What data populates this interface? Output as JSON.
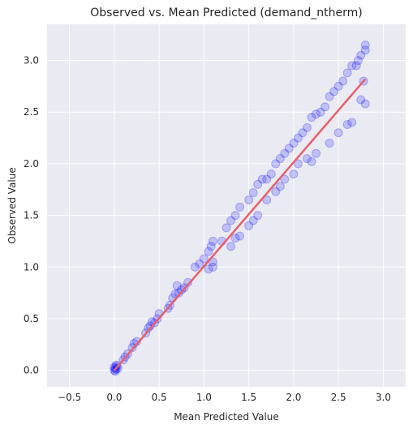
{
  "chart_data": {
    "type": "scatter",
    "title": "Observed vs. Mean Predicted (demand_ntherm)",
    "xlabel": "Mean Predicted Value",
    "ylabel": "Observed Value",
    "xlim": [
      -0.75,
      3.25
    ],
    "ylim": [
      -0.16,
      3.35
    ],
    "xticks": [
      -0.5,
      0.0,
      0.5,
      1.0,
      1.5,
      2.0,
      2.5,
      3.0
    ],
    "xtick_labels": [
      "−0.5",
      "0.0",
      "0.5",
      "1.0",
      "1.5",
      "2.0",
      "2.5",
      "3.0"
    ],
    "yticks": [
      0.0,
      0.5,
      1.0,
      1.5,
      2.0,
      2.5,
      3.0
    ],
    "ytick_labels": [
      "0.0",
      "0.5",
      "1.0",
      "1.5",
      "2.0",
      "2.5",
      "3.0"
    ],
    "grid": true,
    "background_color": "#eaeaf2",
    "point_color": "#0000ff",
    "fit_line_color": "#e8606a",
    "fit_line": {
      "x": [
        0.0,
        2.8
      ],
      "y": [
        0.0,
        2.82
      ]
    },
    "series": [
      {
        "values": [
          [
            0.0,
            0.0
          ],
          [
            0.01,
            0.02
          ],
          [
            0.0,
            0.03
          ],
          [
            0.02,
            0.01
          ],
          [
            0.01,
            -0.01
          ],
          [
            0.03,
            0.04
          ],
          [
            0.02,
            0.05
          ],
          [
            0.04,
            0.02
          ],
          [
            0.1,
            0.1
          ],
          [
            0.12,
            0.13
          ],
          [
            0.15,
            0.16
          ],
          [
            0.2,
            0.22
          ],
          [
            0.22,
            0.26
          ],
          [
            0.25,
            0.28
          ],
          [
            0.35,
            0.36
          ],
          [
            0.38,
            0.41
          ],
          [
            0.4,
            0.43
          ],
          [
            0.42,
            0.47
          ],
          [
            0.45,
            0.46
          ],
          [
            0.48,
            0.5
          ],
          [
            0.5,
            0.55
          ],
          [
            0.6,
            0.6
          ],
          [
            0.62,
            0.63
          ],
          [
            0.65,
            0.7
          ],
          [
            0.68,
            0.74
          ],
          [
            0.7,
            0.82
          ],
          [
            0.72,
            0.75
          ],
          [
            0.75,
            0.78
          ],
          [
            0.78,
            0.8
          ],
          [
            0.82,
            0.85
          ],
          [
            0.9,
            1.0
          ],
          [
            0.95,
            1.03
          ],
          [
            1.0,
            1.08
          ],
          [
            1.05,
            1.15
          ],
          [
            1.08,
            1.2
          ],
          [
            1.1,
            1.25
          ],
          [
            1.1,
            1.05
          ],
          [
            1.05,
            0.98
          ],
          [
            1.1,
            1.0
          ],
          [
            1.2,
            1.25
          ],
          [
            1.25,
            1.38
          ],
          [
            1.3,
            1.45
          ],
          [
            1.35,
            1.5
          ],
          [
            1.4,
            1.58
          ],
          [
            1.3,
            1.2
          ],
          [
            1.35,
            1.28
          ],
          [
            1.4,
            1.3
          ],
          [
            1.5,
            1.65
          ],
          [
            1.55,
            1.72
          ],
          [
            1.6,
            1.8
          ],
          [
            1.65,
            1.85
          ],
          [
            1.5,
            1.4
          ],
          [
            1.55,
            1.45
          ],
          [
            1.6,
            1.5
          ],
          [
            1.7,
            1.85
          ],
          [
            1.75,
            1.9
          ],
          [
            1.8,
            2.0
          ],
          [
            1.85,
            2.05
          ],
          [
            1.7,
            1.65
          ],
          [
            1.8,
            1.73
          ],
          [
            1.85,
            1.78
          ],
          [
            1.9,
            2.1
          ],
          [
            1.95,
            2.15
          ],
          [
            2.0,
            2.2
          ],
          [
            2.05,
            2.25
          ],
          [
            2.0,
            1.9
          ],
          [
            2.05,
            2.0
          ],
          [
            1.9,
            1.85
          ],
          [
            2.1,
            2.3
          ],
          [
            2.15,
            2.35
          ],
          [
            2.2,
            2.45
          ],
          [
            2.25,
            2.48
          ],
          [
            2.2,
            2.02
          ],
          [
            2.25,
            2.1
          ],
          [
            2.15,
            2.05
          ],
          [
            2.3,
            2.5
          ],
          [
            2.35,
            2.55
          ],
          [
            2.4,
            2.65
          ],
          [
            2.45,
            2.7
          ],
          [
            2.4,
            2.2
          ],
          [
            2.5,
            2.3
          ],
          [
            2.5,
            2.75
          ],
          [
            2.55,
            2.8
          ],
          [
            2.6,
            2.88
          ],
          [
            2.65,
            2.95
          ],
          [
            2.6,
            2.38
          ],
          [
            2.65,
            2.4
          ],
          [
            2.7,
            2.95
          ],
          [
            2.72,
            3.0
          ],
          [
            2.75,
            3.05
          ],
          [
            2.8,
            3.1
          ],
          [
            2.8,
            3.15
          ],
          [
            2.78,
            2.8
          ],
          [
            2.8,
            2.58
          ],
          [
            2.75,
            2.62
          ]
        ]
      }
    ]
  }
}
